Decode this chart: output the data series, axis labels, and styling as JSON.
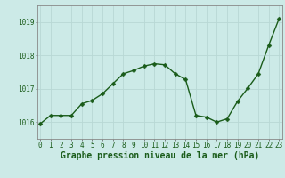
{
  "x": [
    0,
    1,
    2,
    3,
    4,
    5,
    6,
    7,
    8,
    9,
    10,
    11,
    12,
    13,
    14,
    15,
    16,
    17,
    18,
    19,
    20,
    21,
    22,
    23
  ],
  "y": [
    1015.95,
    1016.2,
    1016.2,
    1016.2,
    1016.55,
    1016.65,
    1016.85,
    1017.15,
    1017.45,
    1017.55,
    1017.68,
    1017.75,
    1017.72,
    1017.45,
    1017.28,
    1016.2,
    1016.15,
    1016.0,
    1016.1,
    1016.62,
    1017.02,
    1017.45,
    1018.3,
    1019.1
  ],
  "line_color": "#1a5c1a",
  "marker": "D",
  "marker_size": 2.5,
  "background_color": "#cceae7",
  "grid_color": "#b8d8d5",
  "ylabel_ticks": [
    1016,
    1017,
    1018,
    1019
  ],
  "xticks": [
    0,
    1,
    2,
    3,
    4,
    5,
    6,
    7,
    8,
    9,
    10,
    11,
    12,
    13,
    14,
    15,
    16,
    17,
    18,
    19,
    20,
    21,
    22,
    23
  ],
  "ylim": [
    1015.5,
    1019.5
  ],
  "xlim": [
    -0.3,
    23.3
  ],
  "xlabel": "Graphe pression niveau de la mer (hPa)",
  "xlabel_fontsize": 7,
  "tick_fontsize": 5.5,
  "axis_color": "#555555",
  "spine_color": "#888888",
  "line_width": 1.0
}
